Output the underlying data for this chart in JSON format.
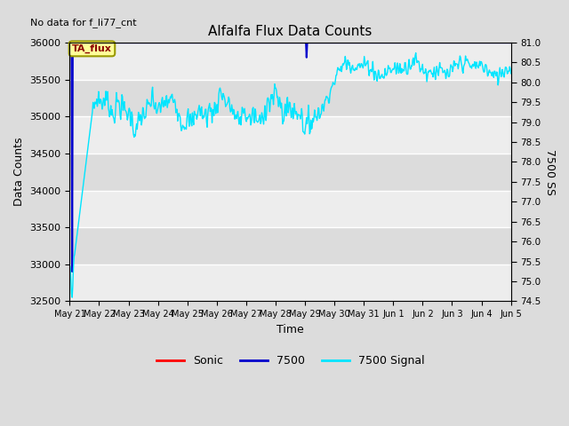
{
  "title": "Alfalfa Flux Data Counts",
  "top_left_text": "No data for f_li77_cnt",
  "ylabel_left": "Data Counts",
  "ylabel_right": "7500 SS",
  "xlabel": "Time",
  "annotation_box": "TA_flux",
  "ylim_left": [
    32500,
    36000
  ],
  "ylim_right": [
    74.5,
    81.0
  ],
  "x_tick_labels": [
    "May 21",
    "May 22",
    "May 23",
    "May 24",
    "May 25",
    "May 26",
    "May 27",
    "May 28",
    "May 29",
    "May 30",
    "May 31",
    "Jun 1",
    "Jun 2",
    "Jun 3",
    "Jun 4",
    "Jun 5"
  ],
  "yticks_left": [
    32500,
    33000,
    33500,
    34000,
    34500,
    35000,
    35500,
    36000
  ],
  "yticks_right": [
    74.5,
    75.0,
    75.5,
    76.0,
    76.5,
    77.0,
    77.5,
    78.0,
    78.5,
    79.0,
    79.5,
    80.0,
    80.5,
    81.0
  ],
  "bg_color": "#dcdcdc",
  "fig_bg_color": "#dcdcdc",
  "line_7500_color": "#0000cc",
  "line_signal_color": "#00e5ff",
  "line_sonic_color": "#ff0000"
}
